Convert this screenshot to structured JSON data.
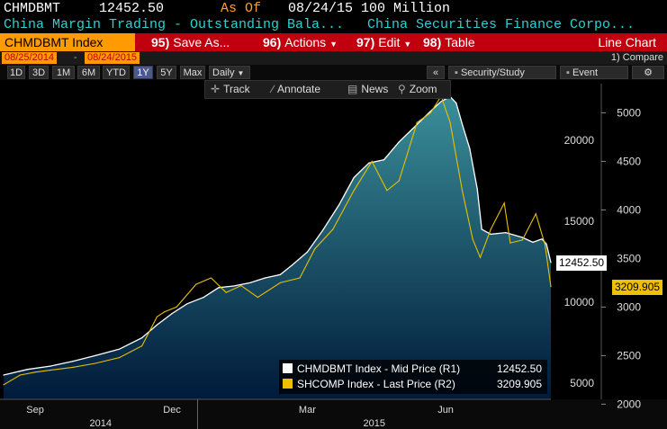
{
  "header": {
    "ticker": "CHMDBMT",
    "value": "12452.50",
    "as_of_label": "As Of",
    "as_of_value": "08/24/15  100 Million",
    "description_left": "China Margin Trading - Outstanding Bala...",
    "description_right": "China Securities Finance Corpo..."
  },
  "toolbar": {
    "index_label": "CHMDBMT Index",
    "save_num": "95)",
    "save_label": "Save As...",
    "actions_num": "96)",
    "actions_label": "Actions",
    "edit_num": "97)",
    "edit_label": "Edit",
    "table_num": "98)",
    "table_label": "Table",
    "chart_type": "Line Chart",
    "arrow": "▼"
  },
  "date_range": {
    "start": "08/25/2014",
    "dash": "-",
    "end": "08/24/2015",
    "compare": "1) Compare"
  },
  "periods": {
    "items": [
      "1D",
      "3D",
      "1M",
      "6M",
      "YTD",
      "1Y",
      "5Y",
      "Max"
    ],
    "active": "1Y",
    "frequency": "Daily",
    "collapse": "«",
    "security_study": "Security/Study",
    "event": "Event",
    "gear": "⚙"
  },
  "chart_tools": {
    "track": "Track",
    "annotate": "Annotate",
    "news": "News",
    "zoom": "Zoom"
  },
  "colors": {
    "area_top": "#3a8f9a",
    "area_bottom": "#001a3a",
    "mid_line": "#ffffff",
    "shcomp_line": "#e8c000",
    "tag_white": "#ffffff",
    "tag_yellow": "#f0c000",
    "header_red": "#c0000f",
    "header_orange": "#ff9a00"
  },
  "chart_data": {
    "type": "line",
    "x_months": [
      "Sep",
      "Dec",
      "Mar",
      "Jun"
    ],
    "x_years": [
      "2014",
      "2015"
    ],
    "y_left_ticks": [
      5000,
      10000,
      15000,
      20000
    ],
    "y_right_ticks": [
      2000,
      2500,
      3000,
      3500,
      4000,
      4500,
      5000
    ],
    "y_left_range": [
      4000,
      23500
    ],
    "y_right_range": [
      2050,
      5300
    ],
    "series": [
      {
        "name": "CHMDBMT Index - Mid Price (R1)",
        "axis": "left",
        "last_value": "12452.50",
        "points": [
          [
            "2014-08-25",
            5500
          ],
          [
            "2014-09-10",
            5850
          ],
          [
            "2014-09-25",
            6050
          ],
          [
            "2014-10-10",
            6350
          ],
          [
            "2014-10-25",
            6700
          ],
          [
            "2014-11-10",
            7100
          ],
          [
            "2014-11-25",
            7800
          ],
          [
            "2014-12-05",
            8600
          ],
          [
            "2014-12-15",
            9300
          ],
          [
            "2014-12-25",
            9900
          ],
          [
            "2015-01-05",
            10300
          ],
          [
            "2015-01-15",
            10900
          ],
          [
            "2015-01-25",
            11000
          ],
          [
            "2015-02-05",
            11200
          ],
          [
            "2015-02-15",
            11500
          ],
          [
            "2015-02-25",
            11700
          ],
          [
            "2015-03-05",
            12300
          ],
          [
            "2015-03-15",
            13100
          ],
          [
            "2015-03-25",
            14400
          ],
          [
            "2015-04-05",
            16000
          ],
          [
            "2015-04-15",
            17700
          ],
          [
            "2015-04-25",
            18600
          ],
          [
            "2015-05-05",
            18800
          ],
          [
            "2015-05-15",
            19900
          ],
          [
            "2015-05-25",
            20800
          ],
          [
            "2015-06-05",
            21800
          ],
          [
            "2015-06-12",
            22400
          ],
          [
            "2015-06-18",
            22700
          ],
          [
            "2015-06-22",
            22300
          ],
          [
            "2015-06-26",
            21000
          ],
          [
            "2015-07-01",
            19500
          ],
          [
            "2015-07-06",
            17000
          ],
          [
            "2015-07-09",
            14500
          ],
          [
            "2015-07-15",
            14200
          ],
          [
            "2015-07-25",
            14300
          ],
          [
            "2015-08-05",
            14000
          ],
          [
            "2015-08-12",
            13700
          ],
          [
            "2015-08-18",
            13900
          ],
          [
            "2015-08-21",
            13600
          ],
          [
            "2015-08-24",
            12452.5
          ]
        ]
      },
      {
        "name": "SHCOMP Index - Last Price (R2)",
        "axis": "right",
        "last_value": "3209.905",
        "points": [
          [
            "2014-08-25",
            2200
          ],
          [
            "2014-09-05",
            2300
          ],
          [
            "2014-09-15",
            2330
          ],
          [
            "2014-09-25",
            2350
          ],
          [
            "2014-10-10",
            2380
          ],
          [
            "2014-10-25",
            2420
          ],
          [
            "2014-11-10",
            2480
          ],
          [
            "2014-11-25",
            2600
          ],
          [
            "2014-12-05",
            2900
          ],
          [
            "2014-12-10",
            2950
          ],
          [
            "2014-12-18",
            3000
          ],
          [
            "2014-12-31",
            3234
          ],
          [
            "2015-01-10",
            3300
          ],
          [
            "2015-01-20",
            3150
          ],
          [
            "2015-01-30",
            3220
          ],
          [
            "2015-02-10",
            3100
          ],
          [
            "2015-02-25",
            3250
          ],
          [
            "2015-03-10",
            3300
          ],
          [
            "2015-03-20",
            3600
          ],
          [
            "2015-04-01",
            3800
          ],
          [
            "2015-04-15",
            4200
          ],
          [
            "2015-04-27",
            4500
          ],
          [
            "2015-05-07",
            4200
          ],
          [
            "2015-05-15",
            4300
          ],
          [
            "2015-05-27",
            4900
          ],
          [
            "2015-06-05",
            5000
          ],
          [
            "2015-06-12",
            5170
          ],
          [
            "2015-06-18",
            4900
          ],
          [
            "2015-06-26",
            4200
          ],
          [
            "2015-07-03",
            3700
          ],
          [
            "2015-07-08",
            3510
          ],
          [
            "2015-07-15",
            3800
          ],
          [
            "2015-07-24",
            4070
          ],
          [
            "2015-07-28",
            3660
          ],
          [
            "2015-08-05",
            3690
          ],
          [
            "2015-08-14",
            3960
          ],
          [
            "2015-08-18",
            3750
          ],
          [
            "2015-08-20",
            3650
          ],
          [
            "2015-08-24",
            3209.905
          ]
        ]
      }
    ],
    "legend_position": "bottom-right",
    "grid": false
  }
}
